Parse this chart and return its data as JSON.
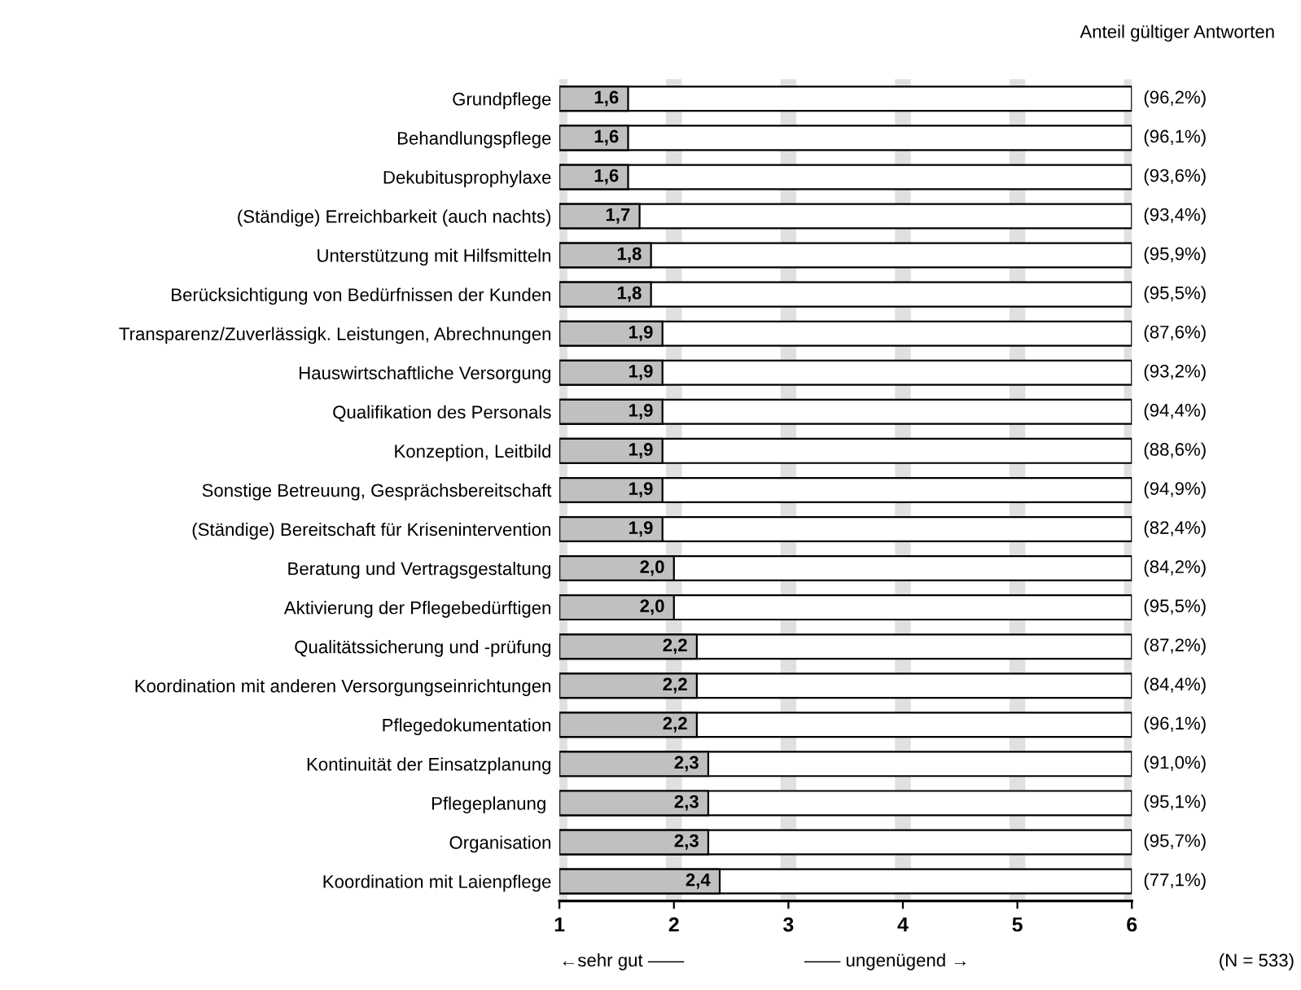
{
  "chart_data": {
    "type": "bar",
    "orientation": "horizontal",
    "categories": [
      "Grundpflege",
      "Behandlungspflege",
      "Dekubitusprophylaxe",
      "(Ständige) Erreichbarkeit (auch nachts)",
      "Unterstützung mit Hilfsmitteln",
      "Berücksichtigung von Bedürfnissen der Kunden",
      "Transparenz/Zuverlässigk. Leistungen, Abrechnungen",
      "Hauswirtschaftliche Versorgung",
      "Qualifikation des Personals",
      "Konzeption, Leitbild",
      "Sonstige Betreuung, Gesprächsbereitschaft",
      "(Ständige) Bereitschaft für Krisenintervention",
      "Beratung und Vertragsgestaltung",
      "Aktivierung der Pflegebedürftigen",
      "Qualitätssicherung und -prüfung",
      "Koordination mit anderen Versorgungseinrichtungen",
      "Pflegedokumentation",
      "Kontinuität der Einsatzplanung",
      "Pflegeplanung ",
      "Organisation",
      "Koordination mit Laienpflege"
    ],
    "values": [
      1.6,
      1.6,
      1.6,
      1.7,
      1.8,
      1.8,
      1.9,
      1.9,
      1.9,
      1.9,
      1.9,
      1.9,
      2.0,
      2.0,
      2.2,
      2.2,
      2.2,
      2.3,
      2.3,
      2.3,
      2.4
    ],
    "value_labels": [
      "1,6",
      "1,6",
      "1,6",
      "1,7",
      "1,8",
      "1,8",
      "1,9",
      "1,9",
      "1,9",
      "1,9",
      "1,9",
      "1,9",
      "2,0",
      "2,0",
      "2,2",
      "2,2",
      "2,2",
      "2,3",
      "2,3",
      "2,3",
      "2,4"
    ],
    "color": "#c0c0c0",
    "xlim": [
      1,
      6
    ],
    "xticks": [
      1,
      2,
      3,
      4,
      5,
      6
    ],
    "grid": "x",
    "legend": false,
    "annotations": [
      "Anteil gültiger Antworten",
      "(96,2%)",
      "(96,1%)",
      "(93,6%)",
      "(93,4%)",
      "(95,9%)",
      "(95,5%)",
      "(87,6%)",
      "(93,2%)",
      "(94,4%)",
      "(88,6%)",
      "(94,9%)",
      "(82,4%)",
      "(84,2%)",
      "(95,5%)",
      "(87,2%)",
      "(84,4%)",
      "(96,1%)",
      "(91,0%)",
      "(95,1%)",
      "(95,7%)",
      "(77,1%)",
      "←sehr gut ——",
      "—— ungenügend →",
      "(N = 533)"
    ]
  }
}
